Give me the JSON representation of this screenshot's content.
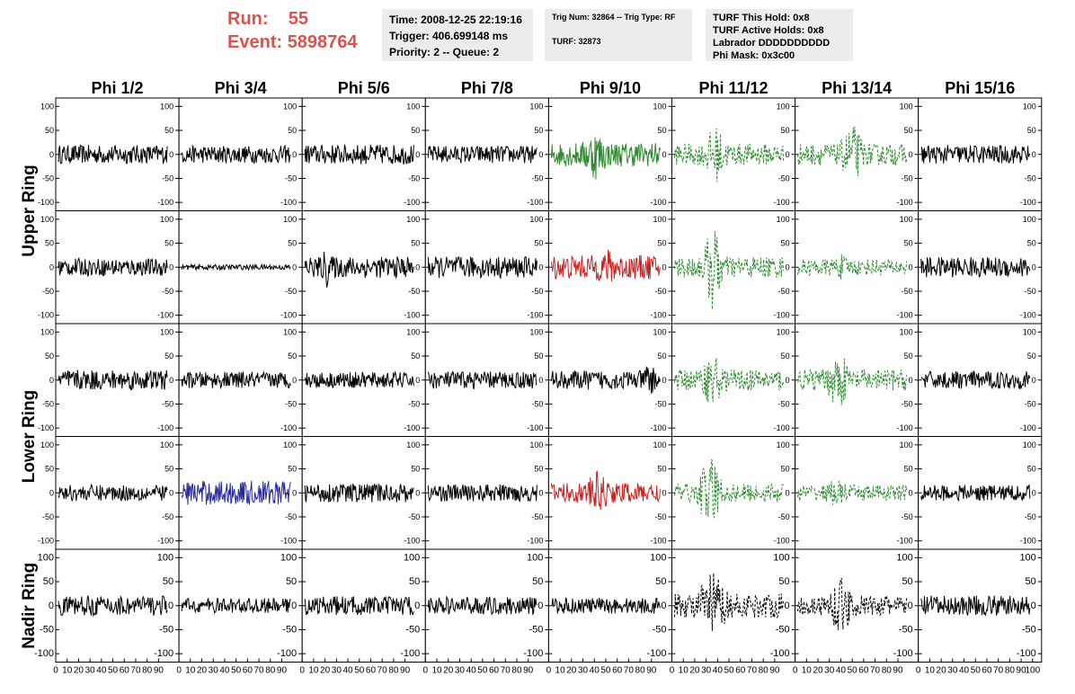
{
  "header": {
    "run_label": "Run:",
    "run_value": "55",
    "event_label": "Event:",
    "event_value": "5898764",
    "time_line": "Time: 2008-12-25 22:19:16",
    "trigger_line": "Trigger: 406.699148 ms",
    "priority_line": "Priority: 2 -- Queue: 2",
    "trig_line": "Trig Num: 32864 -- Trig Type: RF",
    "turf_line": "TURF: 32873",
    "turf_hold_line": "TURF This Hold: 0x8",
    "turf_active_line": "TURF Active Holds: 0x8",
    "labrador_line": "Labrador DDDDDDDDDD",
    "phimask_line": "Phi Mask: 0x3c00"
  },
  "chart_data": {
    "type": "line",
    "columns": [
      "Phi 1/2",
      "Phi 3/4",
      "Phi 5/6",
      "Phi 7/8",
      "Phi 9/10",
      "Phi 11/12",
      "Phi 13/14",
      "Phi 15/16"
    ],
    "row_groups": [
      {
        "label": "Upper Ring",
        "rows": [
          0,
          1
        ]
      },
      {
        "label": "Lower Ring",
        "rows": [
          2,
          3
        ]
      },
      {
        "label": "Nadir Ring",
        "rows": [
          4
        ]
      }
    ],
    "xlim": [
      0,
      100
    ],
    "ylim": [
      -110,
      110
    ],
    "yticks": [
      -100,
      -50,
      0,
      50,
      100
    ],
    "ytick_labels": [
      "-100",
      "-50",
      "0",
      "50",
      "100"
    ],
    "xtick_labels": [
      "0",
      "10",
      "20",
      "30",
      "40",
      "50",
      "60",
      "70",
      "80",
      "90",
      "100"
    ],
    "grid": false,
    "colors": {
      "black": "#000000",
      "green": "#2e8b2e",
      "red": "#cc2222",
      "blue": "#2a2a9a"
    },
    "panels": [
      [
        {
          "color": "black",
          "amp": 14,
          "style": "solid"
        },
        {
          "color": "black",
          "amp": 13,
          "style": "solid"
        },
        {
          "color": "black",
          "amp": 15,
          "style": "solid"
        },
        {
          "color": "black",
          "amp": 13,
          "style": "solid"
        },
        {
          "color": "green",
          "amp": 18,
          "style": "solid",
          "burst": [
            28,
            52,
            2.2
          ]
        },
        {
          "color": "green",
          "amp": 16,
          "style": "dashed",
          "burst": [
            25,
            50,
            2.8
          ]
        },
        {
          "color": "green",
          "amp": 16,
          "style": "dashed",
          "burst": [
            38,
            62,
            3.0
          ]
        },
        {
          "color": "black",
          "amp": 14,
          "style": "solid"
        }
      ],
      [
        {
          "color": "black",
          "amp": 13,
          "style": "solid"
        },
        {
          "color": "black",
          "amp": 4,
          "style": "solid"
        },
        {
          "color": "black",
          "amp": 16,
          "style": "solid",
          "burst": [
            15,
            25,
            2.0
          ]
        },
        {
          "color": "black",
          "amp": 16,
          "style": "solid"
        },
        {
          "color": "red",
          "amp": 18,
          "style": "solid",
          "burst": [
            40,
            65,
            1.5
          ]
        },
        {
          "color": "green",
          "amp": 16,
          "style": "dashed",
          "burst": [
            25,
            45,
            4.5
          ]
        },
        {
          "color": "green",
          "amp": 12,
          "style": "dashed",
          "burst": [
            30,
            50,
            1.6
          ]
        },
        {
          "color": "black",
          "amp": 15,
          "style": "solid"
        }
      ],
      [
        {
          "color": "black",
          "amp": 15,
          "style": "solid"
        },
        {
          "color": "black",
          "amp": 12,
          "style": "solid"
        },
        {
          "color": "black",
          "amp": 12,
          "style": "solid"
        },
        {
          "color": "black",
          "amp": 13,
          "style": "solid"
        },
        {
          "color": "black",
          "amp": 14,
          "style": "solid",
          "burst": [
            85,
            95,
            2.5
          ]
        },
        {
          "color": "green",
          "amp": 16,
          "style": "dashed",
          "burst": [
            25,
            45,
            3.0
          ]
        },
        {
          "color": "green",
          "amp": 16,
          "style": "dashed",
          "burst": [
            25,
            50,
            2.8
          ]
        },
        {
          "color": "black",
          "amp": 13,
          "style": "solid"
        }
      ],
      [
        {
          "color": "black",
          "amp": 12,
          "style": "solid"
        },
        {
          "color": "blue",
          "amp": 18,
          "style": "solid"
        },
        {
          "color": "black",
          "amp": 14,
          "style": "solid"
        },
        {
          "color": "black",
          "amp": 13,
          "style": "solid"
        },
        {
          "color": "red",
          "amp": 15,
          "style": "solid",
          "burst": [
            30,
            55,
            2.2
          ]
        },
        {
          "color": "green",
          "amp": 14,
          "style": "dashed",
          "burst": [
            20,
            45,
            4.5
          ]
        },
        {
          "color": "green",
          "amp": 12,
          "style": "dashed",
          "burst": [
            25,
            45,
            1.8
          ]
        },
        {
          "color": "black",
          "amp": 12,
          "style": "solid"
        }
      ],
      [
        {
          "color": "black",
          "amp": 15,
          "style": "solid"
        },
        {
          "color": "black",
          "amp": 11,
          "style": "solid"
        },
        {
          "color": "black",
          "amp": 14,
          "style": "solid"
        },
        {
          "color": "black",
          "amp": 13,
          "style": "solid"
        },
        {
          "color": "black",
          "amp": 12,
          "style": "solid"
        },
        {
          "color": "black",
          "amp": 18,
          "style": "dashed",
          "burst": [
            20,
            50,
            3.0
          ]
        },
        {
          "color": "black",
          "amp": 15,
          "style": "dashed",
          "burst": [
            25,
            55,
            2.8
          ]
        },
        {
          "color": "black",
          "amp": 15,
          "style": "solid"
        }
      ]
    ]
  }
}
